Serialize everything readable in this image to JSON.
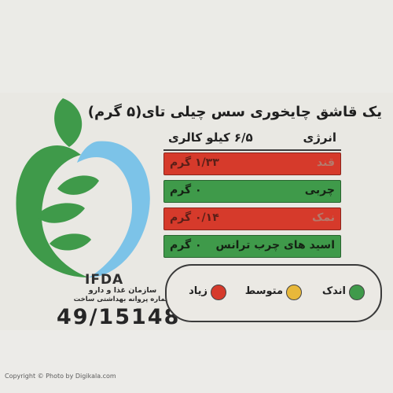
{
  "serving_text": "یک قاشق چایخوری سس چیلی تای(۵ گرم)",
  "energy": {
    "label": "انرژی",
    "value": "۶/۵ کیلو کالری"
  },
  "nutrients": [
    {
      "name": "قند",
      "value": "۱/۳۳ گرم",
      "level_color": "#d63a2b"
    },
    {
      "name": "چربی",
      "value": "۰ گرم",
      "level_color": "#3f9a4a"
    },
    {
      "name": "نمک",
      "value": "۰/۱۴ گرم",
      "level_color": "#d63a2b"
    },
    {
      "name": "اسید های چرب ترانس",
      "value": "۰ گرم",
      "level_color": "#3f9a4a"
    }
  ],
  "legend": [
    {
      "label": "اندک",
      "color": "#3f9a4a",
      "icon": "green-dot-icon"
    },
    {
      "label": "متوسط",
      "color": "#e8b83a",
      "icon": "yellow-dot-icon"
    },
    {
      "label": "زیاد",
      "color": "#d63a2b",
      "icon": "red-dot-icon"
    }
  ],
  "logo": {
    "acronym": "IFDA",
    "org_line1": "سازمان غذا و دارو",
    "org_line2": "شماره پروانه بهداشتی ساخت",
    "registration_number": "49/15148",
    "colors": {
      "green": "#3f9a4a",
      "blue": "#7cc3e8"
    }
  },
  "copyright": "Copyright © Photo by Digikala.com"
}
